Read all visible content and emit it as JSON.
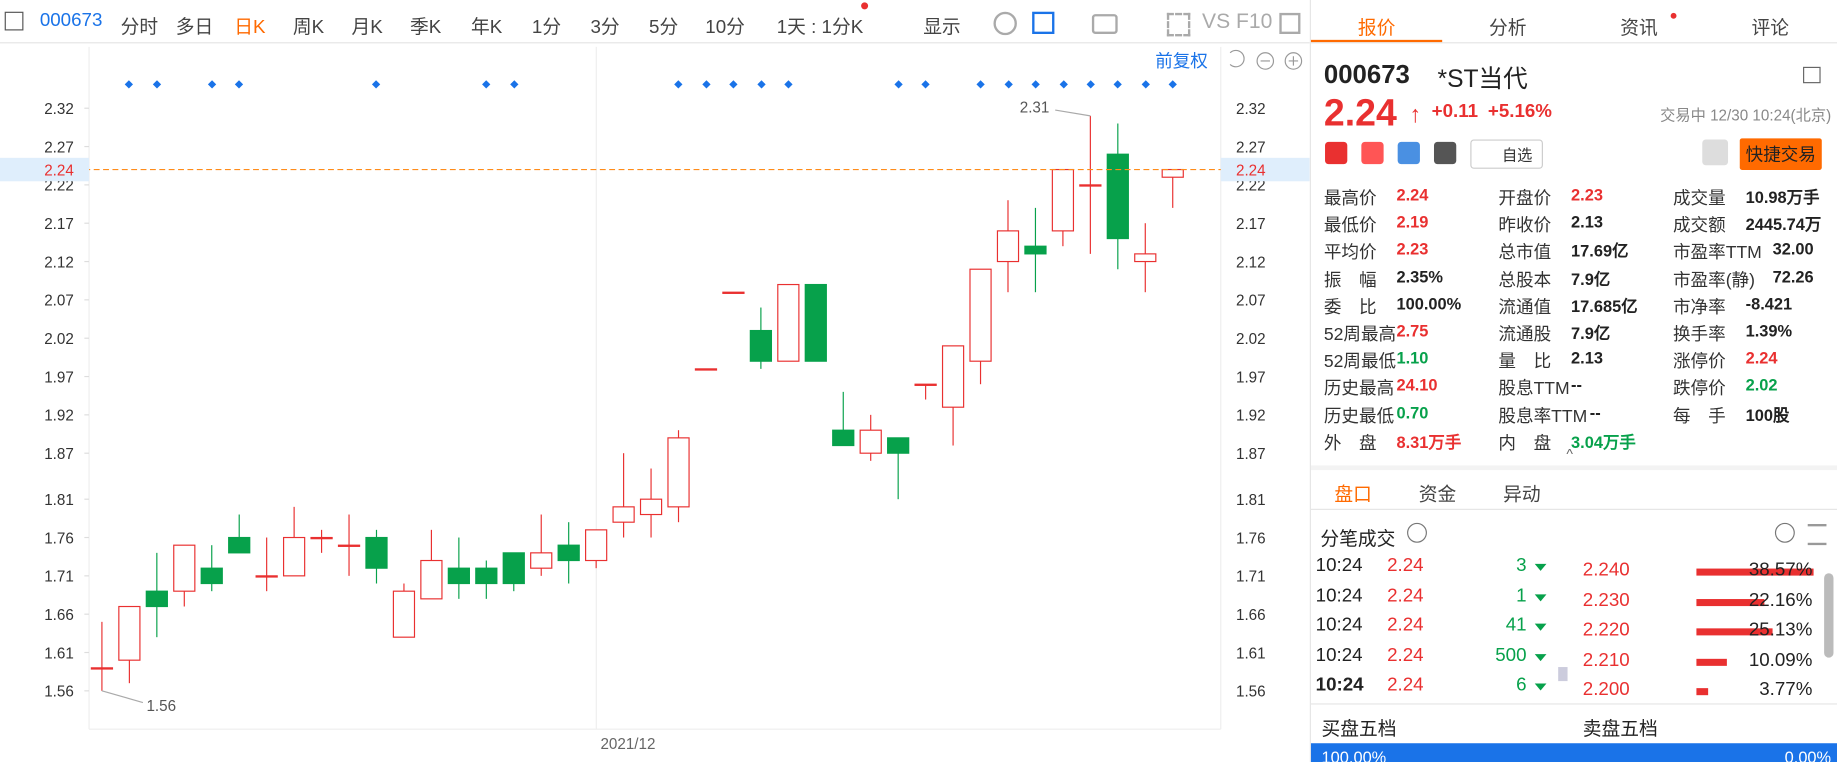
{
  "toolbar": {
    "code": "000673",
    "items": [
      "分时",
      "多日",
      "日K",
      "周K",
      "月K",
      "季K",
      "年K",
      "1分",
      "3分",
      "5分",
      "10分"
    ],
    "active": 2,
    "interval": "1天 : 1分K",
    "display": "显示",
    "tools": [
      "VS",
      "F10"
    ]
  },
  "chart": {
    "type": "candlestick",
    "adjust": "前复权",
    "x_label": "2021/12",
    "ylim": [
      1.51,
      2.4
    ],
    "yticks": [
      2.32,
      2.27,
      2.22,
      2.17,
      2.12,
      2.07,
      2.02,
      1.97,
      1.92,
      1.87,
      1.81,
      1.76,
      1.71,
      1.66,
      1.61,
      1.56
    ],
    "open": [
      1.59,
      1.6,
      1.69,
      1.69,
      1.72,
      1.76,
      1.71,
      1.71,
      1.76,
      1.75,
      1.76,
      1.63,
      1.68,
      1.72,
      1.72,
      1.74,
      1.72,
      1.75,
      1.73,
      1.78,
      1.79,
      1.8,
      1.98,
      2.08,
      2.03,
      1.99,
      2.09,
      1.9,
      1.87,
      1.89,
      1.96,
      1.93,
      1.99,
      2.12,
      2.14,
      2.16,
      2.22,
      2.26,
      2.12,
      2.23
    ],
    "high": [
      1.65,
      1.67,
      1.74,
      1.75,
      1.75,
      1.79,
      1.76,
      1.8,
      1.77,
      1.79,
      1.77,
      1.7,
      1.77,
      1.76,
      1.73,
      1.74,
      1.79,
      1.78,
      1.77,
      1.87,
      1.85,
      1.9,
      1.98,
      2.08,
      2.06,
      2.09,
      2.09,
      1.95,
      1.92,
      1.89,
      1.96,
      2.01,
      2.11,
      2.2,
      2.19,
      2.24,
      2.31,
      2.3,
      2.17,
      2.24
    ],
    "low": [
      1.56,
      1.57,
      1.63,
      1.67,
      1.69,
      1.74,
      1.69,
      1.71,
      1.74,
      1.71,
      1.7,
      1.63,
      1.68,
      1.68,
      1.68,
      1.69,
      1.71,
      1.7,
      1.72,
      1.76,
      1.76,
      1.78,
      1.98,
      2.08,
      1.98,
      1.99,
      1.99,
      1.88,
      1.86,
      1.81,
      1.94,
      1.88,
      1.96,
      2.08,
      2.08,
      2.14,
      2.13,
      2.11,
      2.08,
      2.19
    ],
    "close": [
      1.59,
      1.67,
      1.67,
      1.75,
      1.7,
      1.74,
      1.71,
      1.76,
      1.76,
      1.75,
      1.72,
      1.69,
      1.73,
      1.7,
      1.7,
      1.7,
      1.74,
      1.73,
      1.77,
      1.8,
      1.81,
      1.89,
      1.98,
      2.08,
      1.99,
      2.09,
      1.99,
      1.88,
      1.9,
      1.87,
      1.96,
      2.01,
      2.11,
      2.16,
      2.13,
      2.24,
      2.22,
      2.15,
      2.13,
      2.24
    ],
    "up_color": "#e93030",
    "down_color": "#07a14b",
    "high_label": 2.31,
    "low_label": 1.56,
    "last_price": 2.24
  },
  "panel": {
    "tabs": [
      "报价",
      "分析",
      "资讯",
      "评论"
    ],
    "code": "000673",
    "name": "*ST当代",
    "price": "2.24",
    "change": "+0.11",
    "pct": "+5.16%",
    "status": "交易中 12/30 10:24(北京)",
    "watch": "自选",
    "trade": "快捷交易",
    "stats": [
      [
        {
          "label": "最高价",
          "value": "2.24",
          "color": "#e93030"
        },
        {
          "label": "最低价",
          "value": "2.19",
          "color": "#e93030"
        },
        {
          "label": "平均价",
          "value": "2.23",
          "color": "#e93030"
        },
        {
          "label": "振　幅",
          "value": "2.35%",
          "color": "#222"
        },
        {
          "label": "委　比",
          "value": "100.00%",
          "color": "#222"
        },
        {
          "label": "52周最高",
          "value": "2.75",
          "color": "#e93030"
        },
        {
          "label": "52周最低",
          "value": "1.10",
          "color": "#07a14b"
        },
        {
          "label": "历史最高",
          "value": "24.10",
          "color": "#e93030"
        },
        {
          "label": "历史最低",
          "value": "0.70",
          "color": "#07a14b"
        },
        {
          "label": "外　盘",
          "value": "8.31万手",
          "color": "#e93030"
        }
      ],
      [
        {
          "label": "开盘价",
          "value": "2.23",
          "color": "#e93030"
        },
        {
          "label": "昨收价",
          "value": "2.13",
          "color": "#222"
        },
        {
          "label": "总市值",
          "value": "17.69亿",
          "color": "#222"
        },
        {
          "label": "总股本",
          "value": "7.9亿",
          "color": "#222"
        },
        {
          "label": "流通值",
          "value": "17.685亿",
          "color": "#222"
        },
        {
          "label": "流通股",
          "value": "7.9亿",
          "color": "#222"
        },
        {
          "label": "量　比",
          "value": "2.13",
          "color": "#222"
        },
        {
          "label": "股息TTM",
          "value": "--",
          "color": "#222"
        },
        {
          "label": "股息率TTM",
          "value": "--",
          "color": "#222"
        },
        {
          "label": "内　盘",
          "value": "3.04万手",
          "color": "#07a14b"
        }
      ],
      [
        {
          "label": "成交量",
          "value": "10.98万手",
          "color": "#222"
        },
        {
          "label": "成交额",
          "value": "2445.74万",
          "color": "#222"
        },
        {
          "label": "市盈率TTM",
          "value": "32.00",
          "color": "#222"
        },
        {
          "label": "市盈率(静)",
          "value": "72.26",
          "color": "#222"
        },
        {
          "label": "市净率",
          "value": "-8.421",
          "color": "#222"
        },
        {
          "label": "换手率",
          "value": "1.39%",
          "color": "#222"
        },
        {
          "label": "涨停价",
          "value": "2.24",
          "color": "#e93030"
        },
        {
          "label": "跌停价",
          "value": "2.02",
          "color": "#07a14b"
        },
        {
          "label": "每　手",
          "value": "100股",
          "color": "#222"
        }
      ]
    ],
    "subtabs": [
      "盘口",
      "资金",
      "异动"
    ],
    "ticks_title": "分笔成交",
    "trades": [
      [
        "10:24",
        "2.24",
        "3"
      ],
      [
        "10:24",
        "2.24",
        "1"
      ],
      [
        "10:24",
        "2.24",
        "41"
      ],
      [
        "10:24",
        "2.24",
        "500"
      ],
      [
        "10:24",
        "2.24",
        "6"
      ]
    ],
    "distribution": {
      "prices": [
        "2.240",
        "2.230",
        "2.220",
        "2.210",
        "2.200"
      ],
      "values": [
        38.57,
        22.16,
        25.13,
        10.09,
        3.77
      ],
      "value_labels": [
        "38.57%",
        "22.16%",
        "25.13%",
        "10.09%",
        "3.77%"
      ]
    },
    "bid_title": "买盘五档",
    "ask_title": "卖盘五档",
    "bid_pct": "100.00%",
    "ask_pct": "0.00%"
  }
}
